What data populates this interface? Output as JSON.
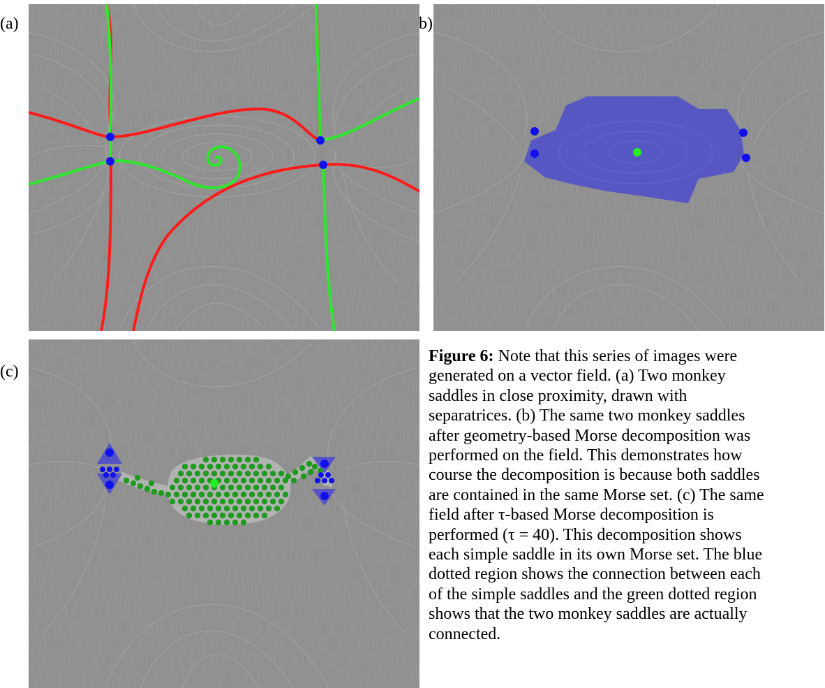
{
  "figure": {
    "panels": [
      {
        "label": "(a)",
        "content": "lic-with-separatrices"
      },
      {
        "label": "(b)",
        "content": "geometry-based-morse-set"
      },
      {
        "label": "(c)",
        "content": "tau-based-morse-sets"
      }
    ],
    "colors": {
      "background": "#8a8a8a",
      "stable_separatrix": "#ff1a1a",
      "unstable_separatrix": "#2ee82e",
      "saddle_point": "#1010ee",
      "source_point": "#22ee22",
      "morse_set_fill": "#4a4ad0",
      "green_dots": "#1e9a1e"
    },
    "caption": {
      "label": "Figure 6:",
      "lines": [
        "Note that this series of images were",
        "generated on a vector field. (a) Two monkey",
        "saddles in close proximity, drawn with",
        "separatrices. (b) The same two monkey saddles",
        "after geometry-based Morse decomposition was",
        "performed on the field. This demonstrates how",
        "course the decomposition is because both saddles",
        "are contained in the same Morse set. (c) The same",
        "field after τ-based Morse decomposition is",
        "performed (τ = 40). This decomposition shows",
        "each simple saddle in its own Morse set. The blue",
        "dotted region shows the connection between each",
        "of the simple saddles and the green dotted region",
        "shows that the two monkey saddles are actually",
        "connected."
      ]
    }
  }
}
